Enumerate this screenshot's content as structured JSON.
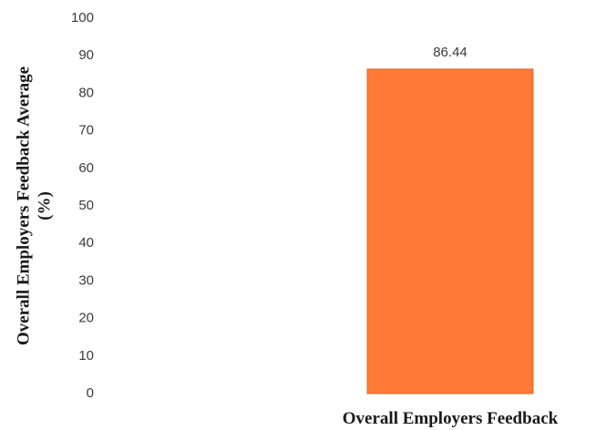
{
  "chart_data": {
    "type": "bar",
    "categories": [
      "Overall Employers Feedback"
    ],
    "values": [
      86.44
    ],
    "value_labels": [
      "86.44"
    ],
    "ylabel_lines": [
      "Overall Employers Feedback Average",
      "(%)"
    ],
    "ylim": [
      0,
      100
    ],
    "yticks": [
      0,
      10,
      20,
      30,
      40,
      50,
      60,
      70,
      80,
      90,
      100
    ],
    "grid": false,
    "legend": "none",
    "colors": {
      "bar_fill": "#FF7A36",
      "bar_edge": "#E8651F"
    }
  }
}
